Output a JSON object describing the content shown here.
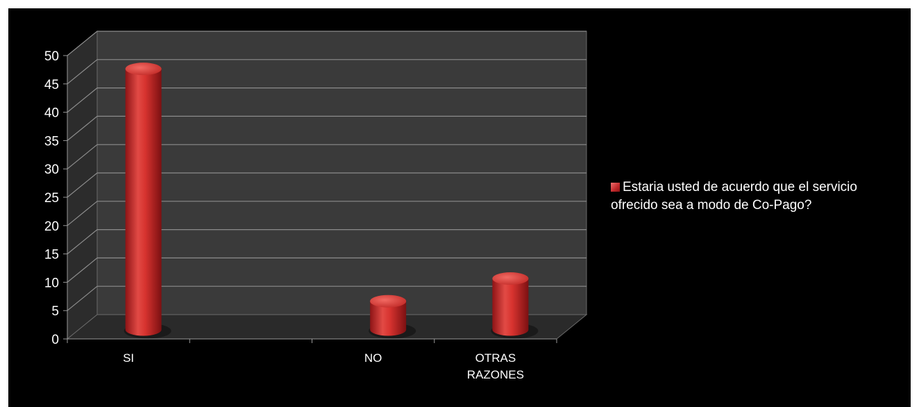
{
  "chart_data": {
    "type": "bar",
    "style": "3d-cylinder",
    "categories": [
      "SI",
      "NO",
      "OTRAS\nRAZONES"
    ],
    "series": [
      {
        "name": "Estaria usted de acuerdo que el servicio ofrecido sea a modo de Co-Pago?",
        "values": [
          46,
          5,
          9
        ],
        "color": "#d7332f"
      }
    ],
    "ylim": [
      0,
      50
    ],
    "yticks": [
      0,
      5,
      10,
      15,
      20,
      25,
      30,
      35,
      40,
      45,
      50
    ],
    "grid": true,
    "legend_position": "right",
    "background_color": "#000000",
    "wall_color": "#3a3a3a",
    "floor_color": "#2a2a2a",
    "gridline_color": "#8c8c8c"
  }
}
